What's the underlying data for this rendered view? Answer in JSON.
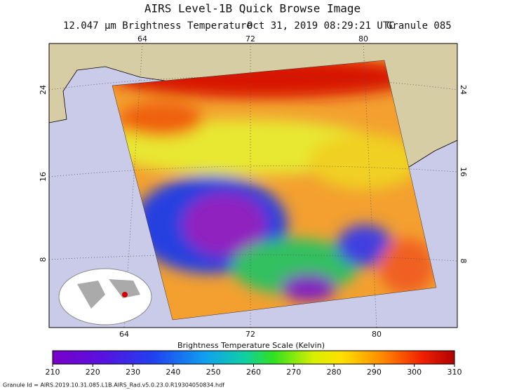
{
  "header": {
    "title": "AIRS Level-1B Quick Browse Image",
    "product": "12.047 μm Brightness Temperature",
    "time": "Oct 31, 2019 08:29:21 UTC",
    "granule": "Granule 085"
  },
  "map": {
    "lon_top": [
      64,
      72,
      80
    ],
    "lon_bottom": [
      64,
      72,
      80
    ],
    "lat_left": [
      24,
      16,
      8
    ],
    "lat_right": [
      24,
      16,
      8
    ]
  },
  "colorbar": {
    "label": "Brightness Temperature Scale (Kelvin)",
    "lim": [
      210,
      310
    ],
    "ticks": [
      210,
      220,
      230,
      240,
      250,
      260,
      270,
      280,
      290,
      300,
      310
    ]
  },
  "footer": {
    "granule_id": "Granule Id = AIRS.2019.10.31.085.L1B.AIRS_Rad.v5.0.23.0.R19304050834.hdf"
  }
}
